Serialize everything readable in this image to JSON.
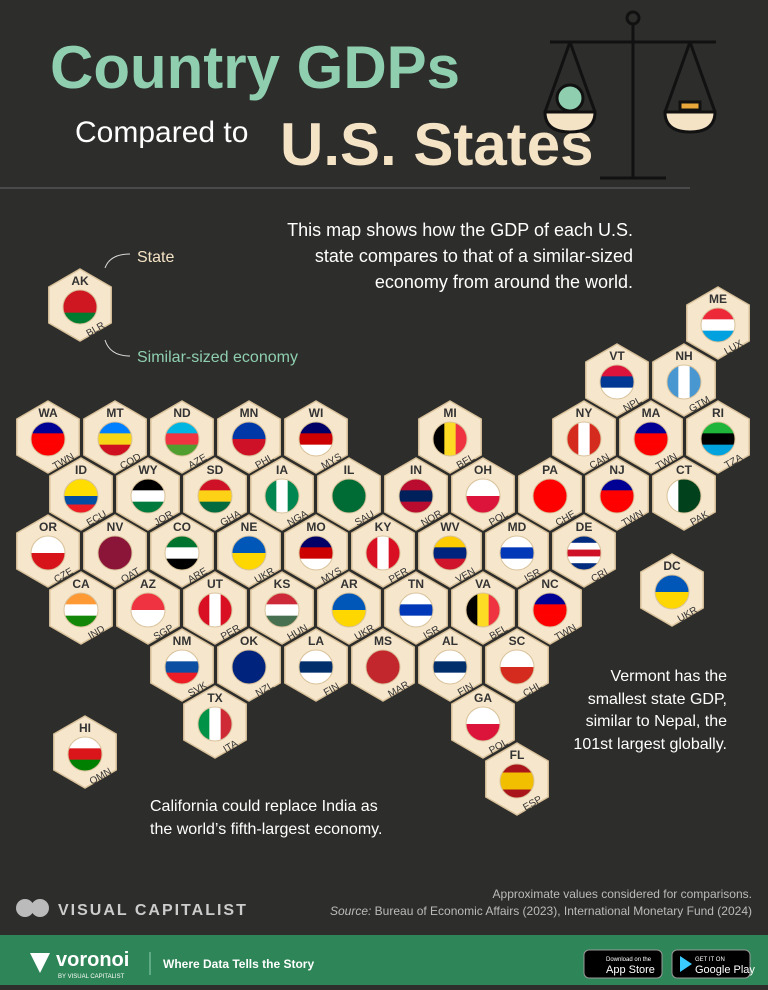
{
  "header": {
    "title": "Country GDPs",
    "subtitle_prefix": "Compared to",
    "subtitle": "U.S. States"
  },
  "description": [
    "This map shows how the GDP of each U.S.",
    "state compares to that of a similar-sized",
    "economy from around the world."
  ],
  "legend": {
    "state": "State",
    "economy": "Similar-sized economy"
  },
  "hexes": [
    {
      "state": "AK",
      "country": "BLR",
      "flag": [
        "#ce1720",
        "#ce1720",
        "#007c30"
      ]
    },
    {
      "state": "ME",
      "country": "LUX",
      "flag": [
        "#ed2939",
        "#ffffff",
        "#00a1de"
      ]
    },
    {
      "state": "VT",
      "country": "NPL",
      "flag": [
        "#dc143c",
        "#003893",
        "#ffffff"
      ]
    },
    {
      "state": "NH",
      "country": "GTM",
      "flag": [
        "#4997d0",
        "#ffffff",
        "#4997d0"
      ],
      "vertical": true
    },
    {
      "state": "WA",
      "country": "TWN",
      "flag": [
        "#000095",
        "#fe0000",
        "#fe0000"
      ]
    },
    {
      "state": "MT",
      "country": "COD",
      "flag": [
        "#007fff",
        "#f7d618",
        "#ce1021"
      ]
    },
    {
      "state": "ND",
      "country": "AZE",
      "flag": [
        "#00b5e2",
        "#ef3340",
        "#509e2f"
      ]
    },
    {
      "state": "MN",
      "country": "PHL",
      "flag": [
        "#0038a8",
        "#ce1126"
      ]
    },
    {
      "state": "WI",
      "country": "MYS",
      "flag": [
        "#010066",
        "#cc0001",
        "#ffffff"
      ]
    },
    {
      "state": "MI",
      "country": "BEL",
      "flag": [
        "#000000",
        "#fdda24",
        "#ef3340"
      ],
      "vertical": true
    },
    {
      "state": "NY",
      "country": "CAN",
      "flag": [
        "#d52b1e",
        "#ffffff",
        "#d52b1e"
      ],
      "vertical": true
    },
    {
      "state": "MA",
      "country": "TWN",
      "flag": [
        "#000095",
        "#fe0000",
        "#fe0000"
      ]
    },
    {
      "state": "RI",
      "country": "TZA",
      "flag": [
        "#1eb53a",
        "#000000",
        "#00a3dd"
      ]
    },
    {
      "state": "ID",
      "country": "ECU",
      "flag": [
        "#ffdd00",
        "#ffdd00",
        "#034ea2",
        "#ed1c24"
      ]
    },
    {
      "state": "WY",
      "country": "JOR",
      "flag": [
        "#000000",
        "#ffffff",
        "#007a3d"
      ]
    },
    {
      "state": "SD",
      "country": "GHA",
      "flag": [
        "#ce1126",
        "#fcd116",
        "#006b3f"
      ]
    },
    {
      "state": "IA",
      "country": "NGA",
      "flag": [
        "#008751",
        "#ffffff",
        "#008751"
      ],
      "vertical": true
    },
    {
      "state": "IL",
      "country": "SAU",
      "flag": [
        "#006c35"
      ]
    },
    {
      "state": "IN",
      "country": "NOR",
      "flag": [
        "#ba0c2f",
        "#00205b",
        "#ba0c2f"
      ]
    },
    {
      "state": "OH",
      "country": "POL",
      "flag": [
        "#ffffff",
        "#dc143c"
      ]
    },
    {
      "state": "PA",
      "country": "CHE",
      "flag": [
        "#ff0000"
      ]
    },
    {
      "state": "NJ",
      "country": "TWN",
      "flag": [
        "#000095",
        "#fe0000",
        "#fe0000"
      ]
    },
    {
      "state": "CT",
      "country": "PAK",
      "flag": [
        "#ffffff",
        "#01411c",
        "#01411c"
      ],
      "vertical": true
    },
    {
      "state": "OR",
      "country": "CZE",
      "flag": [
        "#ffffff",
        "#d7141a"
      ]
    },
    {
      "state": "NV",
      "country": "QAT",
      "flag": [
        "#8a1538"
      ]
    },
    {
      "state": "CO",
      "country": "ARE",
      "flag": [
        "#00732f",
        "#ffffff",
        "#000000"
      ]
    },
    {
      "state": "NE",
      "country": "UKR",
      "flag": [
        "#0057b7",
        "#ffd700"
      ]
    },
    {
      "state": "MO",
      "country": "MYS",
      "flag": [
        "#010066",
        "#cc0001",
        "#ffffff"
      ]
    },
    {
      "state": "KY",
      "country": "PER",
      "flag": [
        "#d91023",
        "#ffffff",
        "#d91023"
      ],
      "vertical": true
    },
    {
      "state": "WV",
      "country": "VEN",
      "flag": [
        "#ffcc00",
        "#00247d",
        "#cf142b"
      ]
    },
    {
      "state": "MD",
      "country": "ISR",
      "flag": [
        "#ffffff",
        "#0038b8",
        "#ffffff"
      ]
    },
    {
      "state": "DE",
      "country": "CRI",
      "flag": [
        "#002b7f",
        "#ffffff",
        "#ce1126",
        "#ffffff",
        "#002b7f"
      ]
    },
    {
      "state": "DC",
      "country": "UKR",
      "flag": [
        "#0057b7",
        "#ffd700"
      ]
    },
    {
      "state": "CA",
      "country": "IND",
      "flag": [
        "#ff9933",
        "#ffffff",
        "#138808"
      ]
    },
    {
      "state": "AZ",
      "country": "SGP",
      "flag": [
        "#ef3340",
        "#ffffff"
      ]
    },
    {
      "state": "UT",
      "country": "PER",
      "flag": [
        "#d91023",
        "#ffffff",
        "#d91023"
      ],
      "vertical": true
    },
    {
      "state": "KS",
      "country": "HUN",
      "flag": [
        "#ce2939",
        "#ffffff",
        "#477050"
      ]
    },
    {
      "state": "AR",
      "country": "UKR",
      "flag": [
        "#0057b7",
        "#ffd700"
      ]
    },
    {
      "state": "TN",
      "country": "ISR",
      "flag": [
        "#ffffff",
        "#0038b8",
        "#ffffff"
      ]
    },
    {
      "state": "VA",
      "country": "BEL",
      "flag": [
        "#000000",
        "#fdda24",
        "#ef3340"
      ],
      "vertical": true
    },
    {
      "state": "NC",
      "country": "TWN",
      "flag": [
        "#000095",
        "#fe0000",
        "#fe0000"
      ]
    },
    {
      "state": "NM",
      "country": "SVK",
      "flag": [
        "#ffffff",
        "#0b4ea2",
        "#ee1c25"
      ]
    },
    {
      "state": "OK",
      "country": "NZL",
      "flag": [
        "#00247d"
      ]
    },
    {
      "state": "LA",
      "country": "FIN",
      "flag": [
        "#ffffff",
        "#002f6c",
        "#ffffff"
      ]
    },
    {
      "state": "MS",
      "country": "MAR",
      "flag": [
        "#c1272d"
      ]
    },
    {
      "state": "AL",
      "country": "FIN",
      "flag": [
        "#ffffff",
        "#002f6c",
        "#ffffff"
      ]
    },
    {
      "state": "SC",
      "country": "CHL",
      "flag": [
        "#ffffff",
        "#d52b1e"
      ]
    },
    {
      "state": "TX",
      "country": "ITA",
      "flag": [
        "#009246",
        "#ffffff",
        "#ce2b37"
      ],
      "vertical": true
    },
    {
      "state": "GA",
      "country": "POL",
      "flag": [
        "#ffffff",
        "#dc143c"
      ]
    },
    {
      "state": "FL",
      "country": "ESP",
      "flag": [
        "#aa151b",
        "#f1bf00",
        "#f1bf00",
        "#aa151b"
      ]
    },
    {
      "state": "HI",
      "country": "OMN",
      "flag": [
        "#ffffff",
        "#db161b",
        "#008000"
      ]
    }
  ],
  "notes": {
    "vermont": [
      "Vermont has the",
      "smallest state GDP,",
      "similar to Nepal, the",
      "101st largest globally."
    ],
    "california": [
      "California could replace India as",
      "the world’s fifth-largest economy."
    ]
  },
  "footer": {
    "disclaimer": "Approximate values considered for comparisons.",
    "source_label": "Source:",
    "source": "Bureau of Economic Affairs (2023), International Monetary Fund (2024)",
    "brand": "VISUAL CAPITALIST"
  },
  "bar": {
    "brand": "voronoi",
    "brand_sub": "BY VISUAL CAPITALIST",
    "tagline": "Where Data Tells the Story",
    "app_top": "Download on the",
    "app": "App Store",
    "play_top": "GET IT ON",
    "play": "Google Play"
  }
}
